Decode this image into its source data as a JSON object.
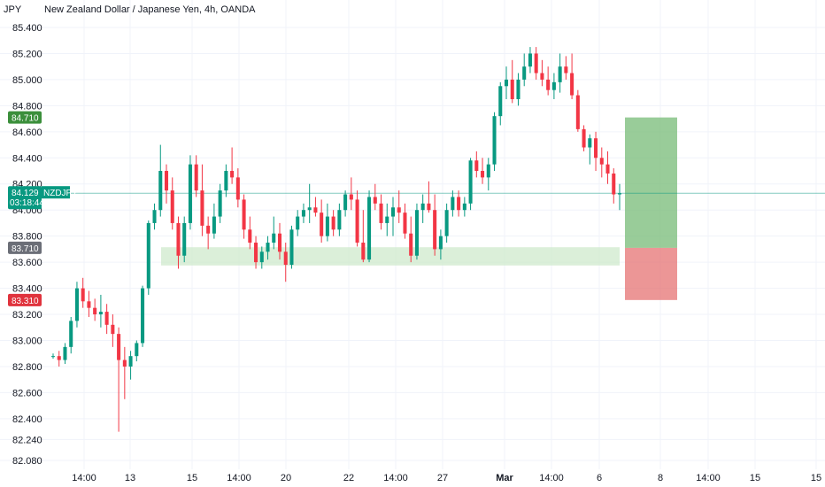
{
  "chart_data": {
    "type": "candlestick",
    "title": "New Zealand Dollar / Japanese Yen, 4h, OANDA",
    "currency_label": "JPY",
    "symbol": "NZDJPY",
    "current_price": "84.129",
    "countdown": "03:18:44",
    "y_ticks": [
      85.4,
      85.2,
      85.0,
      84.8,
      84.6,
      84.4,
      84.2,
      84.0,
      83.8,
      83.6,
      83.4,
      83.2,
      83.0,
      82.8,
      82.6,
      82.4,
      82.24,
      82.08
    ],
    "ylim": [
      82.0,
      85.5
    ],
    "x_labels": [
      "14:00",
      "13",
      "15",
      "14:00",
      "20",
      "22",
      "14:00",
      "27",
      "Mar",
      "14:00",
      "6",
      "8",
      "14:00",
      "15",
      "15"
    ],
    "price_tags": {
      "take_profit": "84.710",
      "entry": "83.710",
      "stop_loss": "83.310"
    },
    "support_zone": [
      83.575,
      83.715
    ],
    "position": {
      "take_profit": 84.71,
      "entry": 83.71,
      "stop_loss": 83.31
    },
    "candles": [
      [
        82.88,
        82.9,
        82.86,
        82.88
      ],
      [
        82.88,
        82.92,
        82.8,
        82.85
      ],
      [
        82.85,
        82.98,
        82.82,
        82.95
      ],
      [
        82.95,
        83.18,
        82.9,
        83.15
      ],
      [
        83.15,
        83.45,
        83.1,
        83.4
      ],
      [
        83.4,
        83.48,
        83.25,
        83.3
      ],
      [
        83.3,
        83.38,
        83.18,
        83.25
      ],
      [
        83.25,
        83.32,
        83.15,
        83.2
      ],
      [
        83.2,
        83.35,
        83.1,
        83.22
      ],
      [
        83.22,
        83.28,
        83.05,
        83.12
      ],
      [
        83.12,
        83.2,
        82.95,
        83.05
      ],
      [
        83.05,
        83.1,
        82.3,
        82.85
      ],
      [
        82.85,
        82.95,
        82.55,
        82.8
      ],
      [
        82.8,
        82.92,
        82.7,
        82.88
      ],
      [
        82.88,
        83.0,
        82.84,
        82.98
      ],
      [
        82.98,
        83.42,
        82.95,
        83.4
      ],
      [
        83.4,
        83.92,
        83.35,
        83.9
      ],
      [
        83.9,
        84.05,
        83.85,
        84.0
      ],
      [
        84.0,
        84.5,
        83.95,
        84.3
      ],
      [
        84.3,
        84.35,
        84.05,
        84.15
      ],
      [
        84.15,
        84.25,
        83.85,
        83.9
      ],
      [
        83.9,
        83.95,
        83.55,
        83.65
      ],
      [
        83.65,
        83.95,
        83.6,
        83.9
      ],
      [
        83.9,
        84.42,
        83.85,
        84.35
      ],
      [
        84.35,
        84.42,
        84.1,
        84.15
      ],
      [
        84.15,
        84.35,
        83.8,
        83.88
      ],
      [
        83.88,
        83.95,
        83.7,
        83.82
      ],
      [
        83.82,
        84.05,
        83.78,
        83.95
      ],
      [
        83.95,
        84.2,
        83.9,
        84.15
      ],
      [
        84.15,
        84.35,
        84.1,
        84.3
      ],
      [
        84.3,
        84.48,
        84.2,
        84.25
      ],
      [
        84.25,
        84.32,
        84.02,
        84.08
      ],
      [
        84.08,
        84.12,
        83.78,
        83.85
      ],
      [
        83.85,
        83.95,
        83.7,
        83.75
      ],
      [
        83.75,
        83.8,
        83.55,
        83.6
      ],
      [
        83.6,
        83.72,
        83.55,
        83.68
      ],
      [
        83.68,
        83.8,
        83.62,
        83.75
      ],
      [
        83.75,
        83.95,
        83.7,
        83.82
      ],
      [
        83.82,
        83.9,
        83.62,
        83.68
      ],
      [
        83.68,
        83.75,
        83.45,
        83.58
      ],
      [
        83.58,
        83.88,
        83.55,
        83.85
      ],
      [
        83.85,
        84.0,
        83.8,
        83.95
      ],
      [
        83.95,
        84.05,
        83.9,
        84.0
      ],
      [
        84.0,
        84.2,
        83.9,
        84.02
      ],
      [
        84.02,
        84.1,
        83.95,
        83.98
      ],
      [
        83.98,
        84.08,
        83.75,
        83.8
      ],
      [
        83.8,
        84.05,
        83.76,
        83.95
      ],
      [
        83.95,
        84.0,
        83.8,
        83.85
      ],
      [
        83.85,
        84.05,
        83.8,
        84.0
      ],
      [
        84.0,
        84.15,
        83.95,
        84.12
      ],
      [
        84.12,
        84.25,
        84.0,
        84.08
      ],
      [
        84.08,
        84.15,
        83.72,
        83.75
      ],
      [
        83.75,
        84.0,
        83.6,
        83.62
      ],
      [
        83.62,
        84.15,
        83.6,
        84.1
      ],
      [
        84.1,
        84.2,
        84.0,
        84.05
      ],
      [
        84.05,
        84.12,
        83.85,
        83.9
      ],
      [
        83.9,
        84.05,
        83.8,
        83.95
      ],
      [
        83.95,
        84.1,
        83.8,
        84.02
      ],
      [
        84.02,
        84.15,
        83.9,
        83.98
      ],
      [
        83.98,
        84.05,
        83.78,
        83.82
      ],
      [
        83.82,
        83.95,
        83.6,
        83.65
      ],
      [
        83.65,
        84.05,
        83.62,
        84.0
      ],
      [
        84.0,
        84.12,
        83.9,
        84.05
      ],
      [
        84.05,
        84.22,
        83.98,
        84.0
      ],
      [
        84.0,
        84.12,
        83.65,
        83.7
      ],
      [
        83.7,
        83.85,
        83.62,
        83.8
      ],
      [
        83.8,
        84.05,
        83.75,
        84.0
      ],
      [
        84.0,
        84.15,
        83.95,
        84.1
      ],
      [
        84.1,
        84.15,
        83.95,
        84.0
      ],
      [
        84.0,
        84.1,
        83.95,
        84.05
      ],
      [
        84.05,
        84.4,
        84.0,
        84.38
      ],
      [
        84.38,
        84.45,
        84.25,
        84.3
      ],
      [
        84.3,
        84.4,
        84.2,
        84.25
      ],
      [
        84.25,
        84.4,
        84.15,
        84.35
      ],
      [
        84.35,
        84.75,
        84.3,
        84.72
      ],
      [
        84.72,
        84.98,
        84.65,
        84.95
      ],
      [
        84.95,
        85.1,
        84.85,
        85.0
      ],
      [
        85.0,
        85.15,
        84.82,
        84.85
      ],
      [
        84.85,
        85.05,
        84.8,
        85.0
      ],
      [
        85.0,
        85.2,
        84.95,
        85.1
      ],
      [
        85.1,
        85.25,
        85.05,
        85.2
      ],
      [
        85.2,
        85.25,
        85.0,
        85.05
      ],
      [
        85.05,
        85.15,
        84.95,
        85.0
      ],
      [
        85.0,
        85.1,
        84.88,
        84.92
      ],
      [
        84.92,
        85.05,
        84.85,
        84.98
      ],
      [
        84.98,
        85.2,
        84.9,
        85.1
      ],
      [
        85.1,
        85.18,
        85.0,
        85.05
      ],
      [
        85.05,
        85.2,
        84.85,
        84.88
      ],
      [
        84.88,
        84.92,
        84.6,
        84.62
      ],
      [
        84.62,
        84.65,
        84.45,
        84.48
      ],
      [
        84.48,
        84.58,
        84.35,
        84.55
      ],
      [
        84.55,
        84.6,
        84.3,
        84.4
      ],
      [
        84.4,
        84.48,
        84.25,
        84.35
      ],
      [
        84.35,
        84.45,
        84.2,
        84.28
      ],
      [
        84.28,
        84.32,
        84.05,
        84.12
      ],
      [
        84.12,
        84.2,
        84.0,
        84.129
      ]
    ]
  },
  "colors": {
    "up": "#089981",
    "down": "#f23645",
    "grid": "#f0f3fa",
    "zone": "#cfe9cc",
    "target_fill": "#7fbf7f",
    "stop_fill": "#e57373",
    "tag_green": "#3b8f3b",
    "tag_gray": "#6b6e77",
    "tag_red": "#e0333d",
    "symbol_tag": "#089981"
  }
}
